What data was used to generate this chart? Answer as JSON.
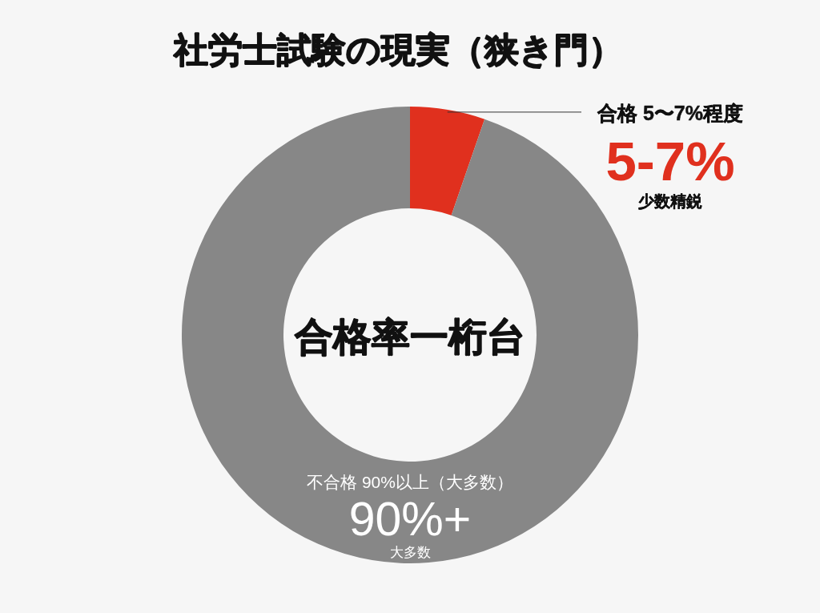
{
  "chart_data": {
    "type": "donut",
    "title": "社労士試験の現実（狭き門）",
    "categories": [
      "合格 5〜7%程度",
      "不合格 90%以上（大多数）"
    ],
    "values": [
      5.3,
      94.7
    ],
    "colors": [
      "#e0301e",
      "#878787"
    ],
    "annotations": [
      "合格率一桁台",
      "5-7%",
      "少数精鋭",
      "90%+",
      "大多数"
    ]
  }
}
